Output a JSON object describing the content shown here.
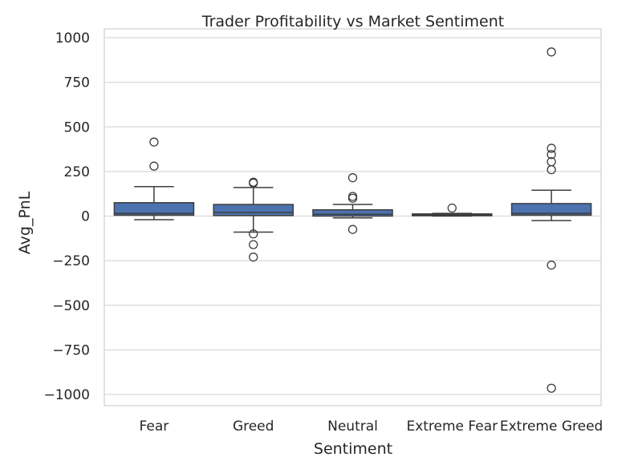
{
  "chart_data": {
    "type": "box",
    "title": "Trader Profitability vs Market Sentiment",
    "xlabel": "Sentiment",
    "ylabel": "Avg_PnL",
    "ylim": [
      -1050,
      1010
    ],
    "yticks": [
      1000,
      750,
      500,
      250,
      0,
      -250,
      -500,
      -750,
      -1000
    ],
    "ytick_labels": [
      "1000",
      "750",
      "500",
      "250",
      "0",
      "−250",
      "−500",
      "−750",
      "−1000"
    ],
    "grid": true,
    "box_color": "#4c72b0",
    "categories": [
      "Fear",
      "Greed",
      "Neutral",
      "Extreme Fear",
      "Extreme Greed"
    ],
    "boxes": [
      {
        "category": "Fear",
        "whisker_low": -20,
        "q1": 5,
        "median": 15,
        "q3": 75,
        "whisker_high": 165,
        "outliers": [
          415,
          280
        ]
      },
      {
        "category": "Greed",
        "whisker_low": -90,
        "q1": 3,
        "median": 20,
        "q3": 65,
        "whisker_high": 160,
        "outliers": [
          185,
          190,
          -100,
          -160,
          -230
        ]
      },
      {
        "category": "Neutral",
        "whisker_low": -10,
        "q1": 0,
        "median": 10,
        "q3": 35,
        "whisker_high": 65,
        "outliers": [
          215,
          110,
          100,
          -75
        ]
      },
      {
        "category": "Extreme Fear",
        "whisker_low": 0,
        "q1": 2,
        "median": 6,
        "q3": 12,
        "whisker_high": 15,
        "outliers": [
          45
        ]
      },
      {
        "category": "Extreme Greed",
        "whisker_low": -25,
        "q1": 5,
        "median": 15,
        "q3": 70,
        "whisker_high": 145,
        "outliers": [
          920,
          380,
          345,
          305,
          260,
          -275,
          -965
        ]
      }
    ]
  }
}
